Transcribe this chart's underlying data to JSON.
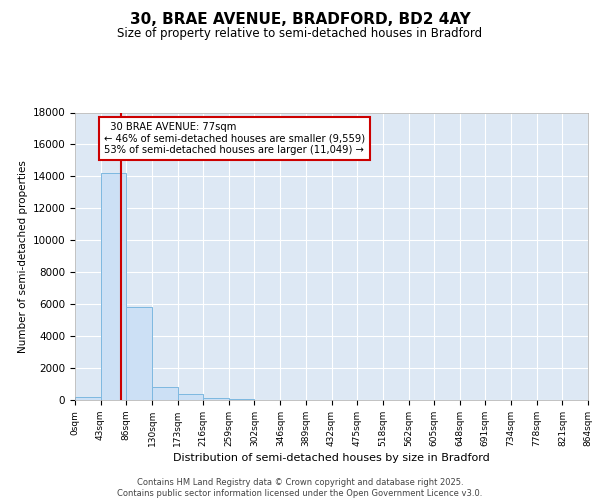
{
  "title": "30, BRAE AVENUE, BRADFORD, BD2 4AY",
  "subtitle": "Size of property relative to semi-detached houses in Bradford",
  "xlabel": "Distribution of semi-detached houses by size in Bradford",
  "ylabel": "Number of semi-detached properties",
  "bin_edges": [
    0,
    43,
    86,
    130,
    173,
    216,
    259,
    302,
    346,
    389,
    432,
    475,
    518,
    562,
    605,
    648,
    691,
    734,
    778,
    821,
    864
  ],
  "bar_heights": [
    200,
    14200,
    5800,
    800,
    400,
    150,
    60,
    20,
    8,
    4,
    2,
    1,
    0,
    0,
    0,
    0,
    0,
    0,
    0,
    0
  ],
  "bar_color": "#cce0f5",
  "bar_edge_color": "#7db8e0",
  "property_size": 77,
  "property_label": "30 BRAE AVENUE: 77sqm",
  "pct_smaller": 46,
  "pct_larger": 53,
  "n_smaller": 9559,
  "n_larger": 11049,
  "vline_color": "#cc0000",
  "annotation_box_color": "#cc0000",
  "ylim": [
    0,
    18000
  ],
  "yticks": [
    0,
    2000,
    4000,
    6000,
    8000,
    10000,
    12000,
    14000,
    16000,
    18000
  ],
  "bg_color": "#dde8f4",
  "footer_line1": "Contains HM Land Registry data © Crown copyright and database right 2025.",
  "footer_line2": "Contains public sector information licensed under the Open Government Licence v3.0."
}
